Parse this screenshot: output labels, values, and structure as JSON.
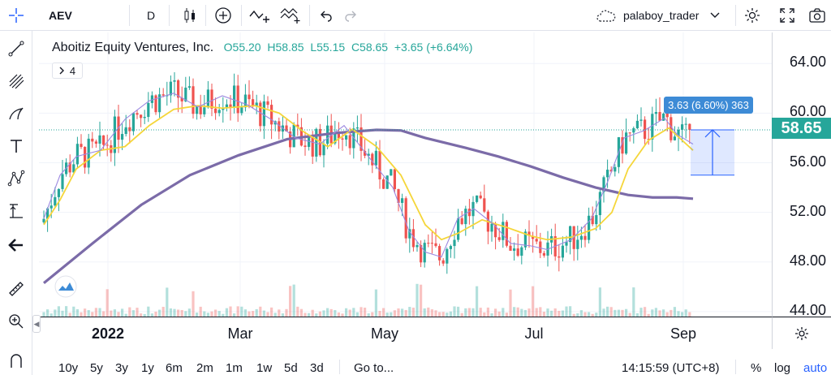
{
  "toolbar": {
    "symbol": "AEV",
    "interval": "D",
    "user": "palaboy_trader",
    "icons": [
      "crosshair-icon",
      "candles-icon",
      "add-compare-icon",
      "indicators-icon",
      "templates-icon",
      "undo-icon",
      "redo-icon",
      "cloud-icon",
      "chevron-down-icon",
      "settings-icon",
      "fullscreen-icon",
      "snapshot-icon"
    ]
  },
  "left_tools": [
    "cursor-icon",
    "trendline-icon",
    "pitchfork-icon",
    "brush-icon",
    "text-icon",
    "pattern-icon",
    "measure-icon",
    "back-arrow-icon",
    "ruler-icon",
    "zoom-icon",
    "magnet-icon"
  ],
  "legend": {
    "name": "Aboitiz Equity Ventures, Inc.",
    "open": "O55.20",
    "high": "H58.85",
    "low": "L55.15",
    "close": "C58.65",
    "change": "+3.65 (+6.64%)",
    "collapse_count": "4"
  },
  "price_badge": "58.65",
  "measure_label": "3.63 (6.60%) 363",
  "price_ticks": [
    "64.00",
    "60.00",
    "56.00",
    "52.00",
    "48.00",
    "44.00"
  ],
  "time_ticks": [
    "2022",
    "Mar",
    "May",
    "Jul",
    "Sep"
  ],
  "bottom": {
    "ranges": [
      "10y",
      "5y",
      "3y",
      "1y",
      "6m",
      "2m",
      "1m",
      "1w",
      "5d",
      "3d"
    ],
    "goto": "Go to...",
    "clock": "14:15:59 (UTC+8)",
    "percent": "%",
    "log": "log",
    "auto": "auto"
  },
  "colors": {
    "up": "#26a69a",
    "down": "#ef5350",
    "ma_fast": "#9c88e0",
    "ma_mid": "#f5d63a",
    "ma_slow": "#7b6ba8",
    "accent": "#2962ff"
  },
  "chart_data": {
    "type": "candlestick",
    "symbol": "AEV",
    "ylim": [
      43.6,
      66.5
    ],
    "last": 58.65,
    "price_line": 58.65,
    "ma_slow_points": [
      [
        0,
        46.3
      ],
      [
        60,
        49.5
      ],
      [
        120,
        52.6
      ],
      [
        180,
        55.0
      ],
      [
        240,
        56.6
      ],
      [
        300,
        57.9
      ],
      [
        360,
        58.4
      ],
      [
        410,
        58.65
      ],
      [
        440,
        58.6
      ],
      [
        470,
        58.0
      ],
      [
        520,
        57.2
      ],
      [
        560,
        56.5
      ],
      [
        600,
        55.7
      ],
      [
        640,
        54.8
      ],
      [
        680,
        54.0
      ],
      [
        720,
        53.4
      ],
      [
        750,
        53.2
      ],
      [
        780,
        53.2
      ],
      [
        800,
        53.1
      ]
    ],
    "ma_mid_points": [
      [
        0,
        51.0
      ],
      [
        20,
        53.0
      ],
      [
        40,
        55.5
      ],
      [
        70,
        57.0
      ],
      [
        100,
        57.3
      ],
      [
        130,
        59.0
      ],
      [
        160,
        60.3
      ],
      [
        190,
        60.6
      ],
      [
        220,
        60.4
      ],
      [
        260,
        60.6
      ],
      [
        290,
        60.0
      ],
      [
        320,
        58.5
      ],
      [
        350,
        57.3
      ],
      [
        380,
        58.7
      ],
      [
        410,
        57.3
      ],
      [
        440,
        55.0
      ],
      [
        470,
        51.0
      ],
      [
        490,
        49.8
      ],
      [
        510,
        50.3
      ],
      [
        540,
        51.4
      ],
      [
        570,
        50.8
      ],
      [
        600,
        50.1
      ],
      [
        620,
        49.8
      ],
      [
        650,
        50.0
      ],
      [
        680,
        50.7
      ],
      [
        700,
        52.0
      ],
      [
        720,
        55.5
      ],
      [
        745,
        57.8
      ],
      [
        770,
        58.8
      ],
      [
        800,
        57.0
      ]
    ],
    "ma_fast_points": [
      [
        0,
        51.5
      ],
      [
        20,
        55.0
      ],
      [
        40,
        56.5
      ],
      [
        70,
        57.0
      ],
      [
        100,
        59.5
      ],
      [
        130,
        61.0
      ],
      [
        160,
        61.6
      ],
      [
        190,
        60.5
      ],
      [
        220,
        61.4
      ],
      [
        250,
        60.7
      ],
      [
        280,
        59.5
      ],
      [
        310,
        58.0
      ],
      [
        340,
        57.5
      ],
      [
        370,
        59.0
      ],
      [
        400,
        56.5
      ],
      [
        430,
        54.0
      ],
      [
        450,
        50.5
      ],
      [
        470,
        48.8
      ],
      [
        490,
        48.4
      ],
      [
        510,
        51.5
      ],
      [
        530,
        52.3
      ],
      [
        555,
        51.0
      ],
      [
        575,
        49.5
      ],
      [
        600,
        49.3
      ],
      [
        620,
        49.0
      ],
      [
        650,
        49.8
      ],
      [
        675,
        51.5
      ],
      [
        695,
        54.5
      ],
      [
        715,
        58.0
      ],
      [
        740,
        58.6
      ],
      [
        765,
        59.6
      ],
      [
        780,
        58.3
      ],
      [
        800,
        57.5
      ]
    ],
    "measure": {
      "from": 55.0,
      "to": 58.65,
      "change": 3.63,
      "percent": 6.6,
      "bars": 363
    }
  }
}
